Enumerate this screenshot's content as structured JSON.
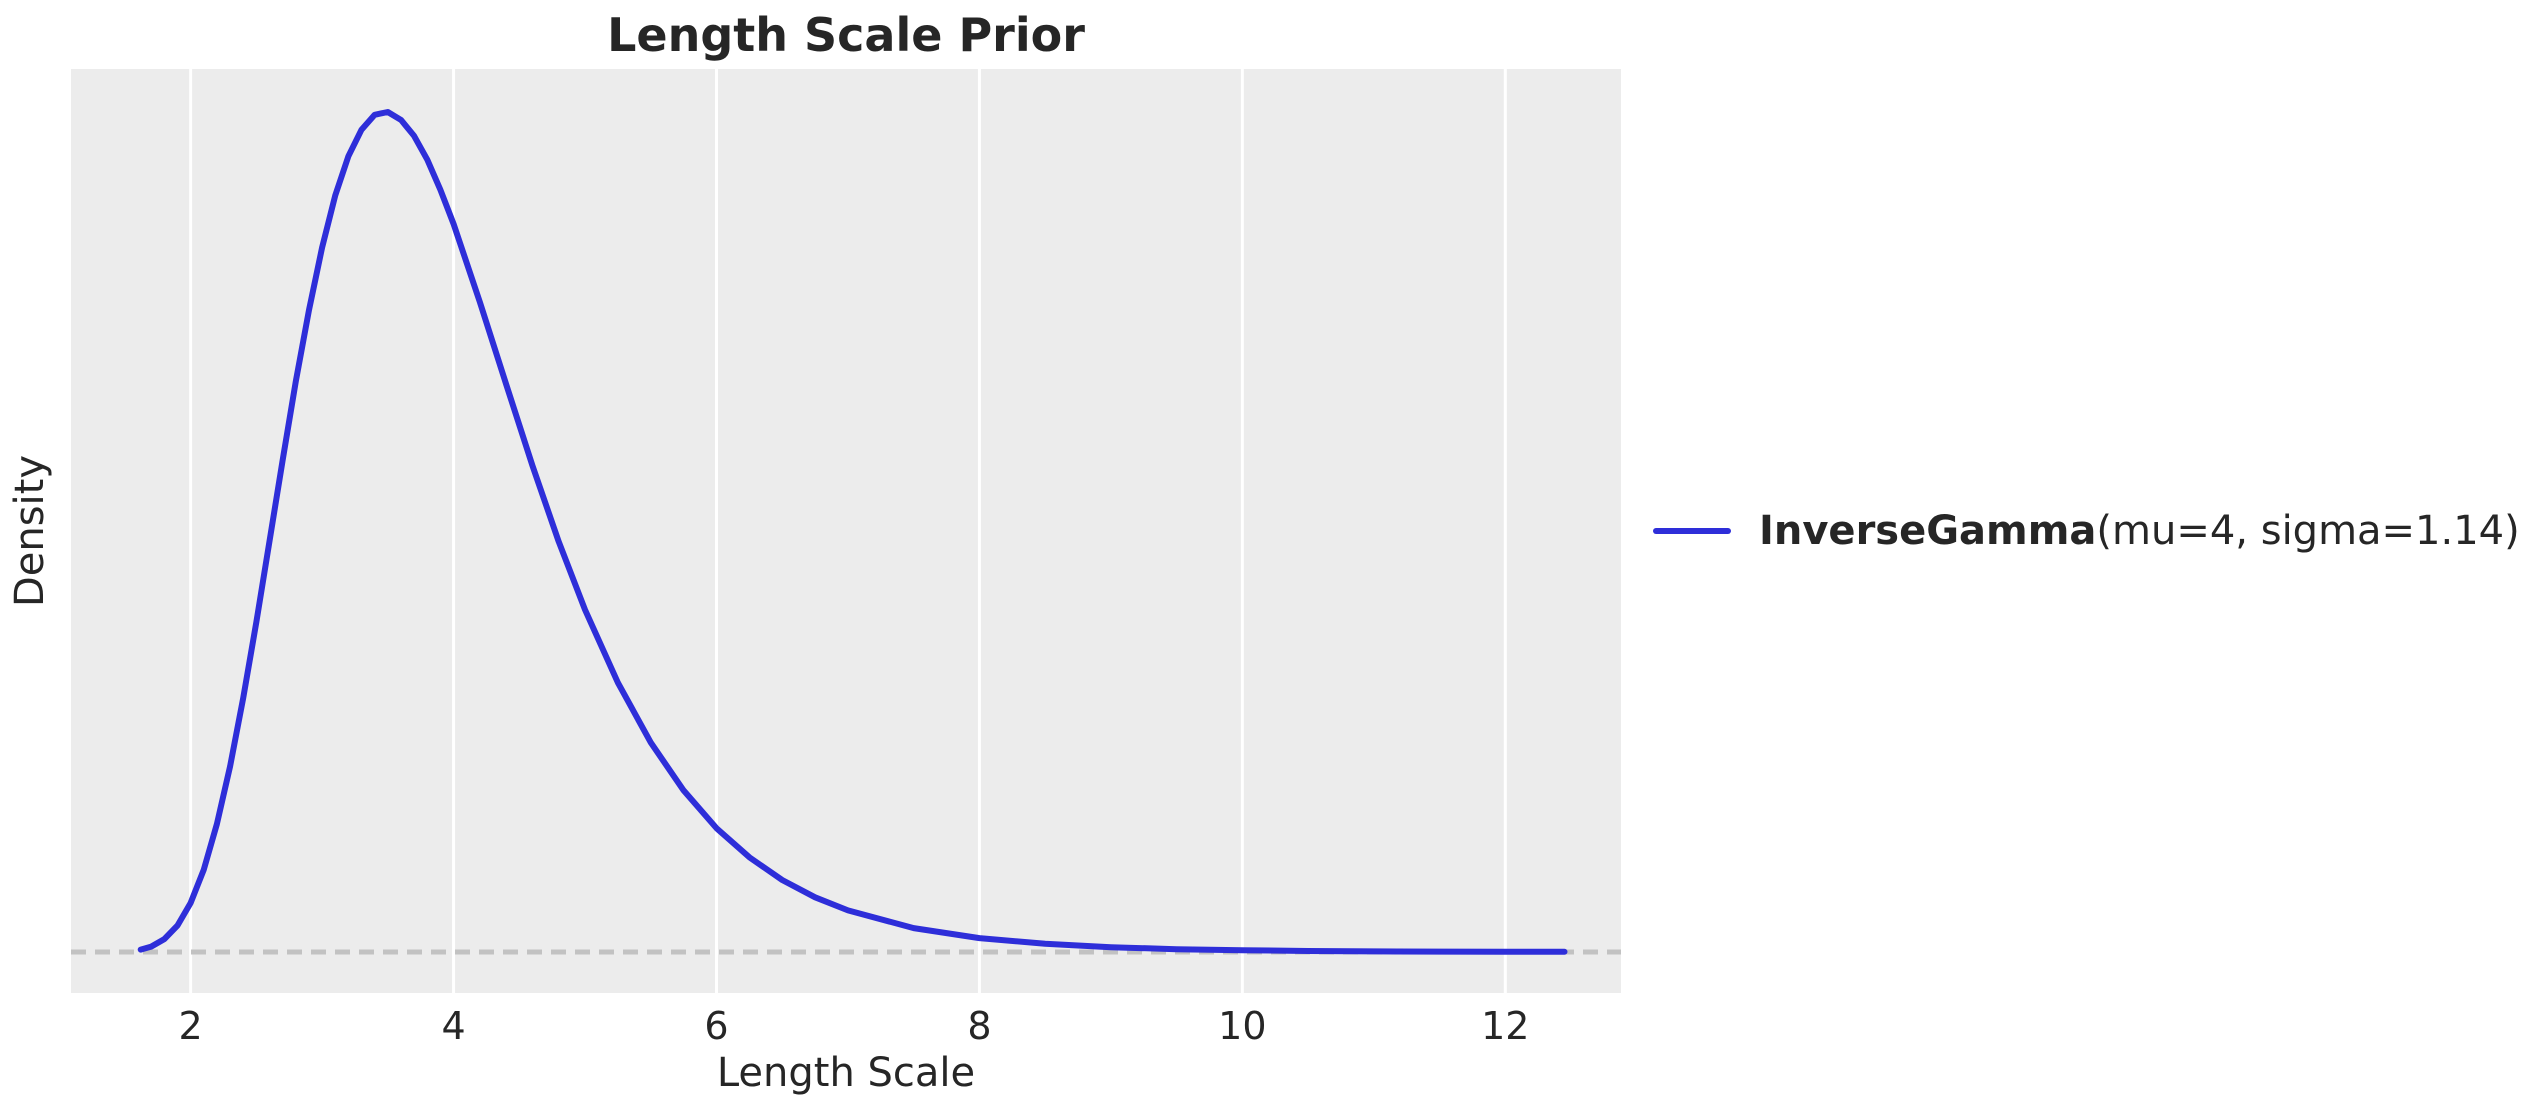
{
  "figure": {
    "title": "Length Scale Prior",
    "xlabel": "Length Scale",
    "ylabel": "Density"
  },
  "legend": {
    "name_bold": "InverseGamma",
    "params": "(mu=4, sigma=1.14)"
  },
  "colors": {
    "curve": "#2e2ed9",
    "plot_bg": "#ececec",
    "grid": "#ffffff",
    "zero_line": "#c2c2c2",
    "text": "#262626"
  },
  "chart_data": {
    "type": "line",
    "title": "Length Scale Prior",
    "xlabel": "Length Scale",
    "ylabel": "Density",
    "xlim": [
      1.09,
      12.88
    ],
    "ylim": [
      -0.0204,
      0.4393
    ],
    "x_ticks": [
      2,
      4,
      6,
      8,
      10,
      12
    ],
    "y_ticks": [],
    "grid": "vertical white gridlines on gray background, no horizontal gridlines, no spines",
    "legend_position": "outside center-right, no frame",
    "zero_baseline": {
      "y": 0,
      "style": "dashed",
      "color": "#c2c2c2"
    },
    "series": [
      {
        "name": "InverseGamma(mu=4, sigma=1.14)",
        "distribution": "InverseGamma",
        "mu": 4,
        "sigma": 1.14,
        "peak": {
          "x": 3.48,
          "density": 0.418
        },
        "color": "#2e2ed9",
        "x": [
          1.62,
          1.7,
          1.8,
          1.9,
          2.0,
          2.1,
          2.2,
          2.3,
          2.4,
          2.5,
          2.6,
          2.7,
          2.8,
          2.9,
          3.0,
          3.1,
          3.2,
          3.3,
          3.4,
          3.5,
          3.6,
          3.7,
          3.8,
          3.9,
          4.0,
          4.2,
          4.4,
          4.6,
          4.8,
          5.0,
          5.25,
          5.5,
          5.75,
          6.0,
          6.25,
          6.5,
          6.75,
          7.0,
          7.5,
          8.0,
          8.5,
          9.0,
          9.5,
          10.0,
          10.5,
          11.0,
          11.5,
          12.0,
          12.45
        ],
        "density": [
          0.0012,
          0.0027,
          0.0064,
          0.0132,
          0.0244,
          0.041,
          0.0637,
          0.0924,
          0.1263,
          0.1643,
          0.2044,
          0.2448,
          0.2839,
          0.3194,
          0.3505,
          0.3763,
          0.3959,
          0.4091,
          0.4165,
          0.4179,
          0.414,
          0.406,
          0.3942,
          0.3792,
          0.3622,
          0.3233,
          0.2824,
          0.2419,
          0.2042,
          0.1703,
          0.134,
          0.1042,
          0.0804,
          0.0616,
          0.0471,
          0.0358,
          0.0272,
          0.0207,
          0.0119,
          0.0069,
          0.0041,
          0.0024,
          0.0014,
          0.0009,
          0.0005,
          0.0003,
          0.0002,
          0.0001,
          0.0001
        ]
      }
    ]
  }
}
